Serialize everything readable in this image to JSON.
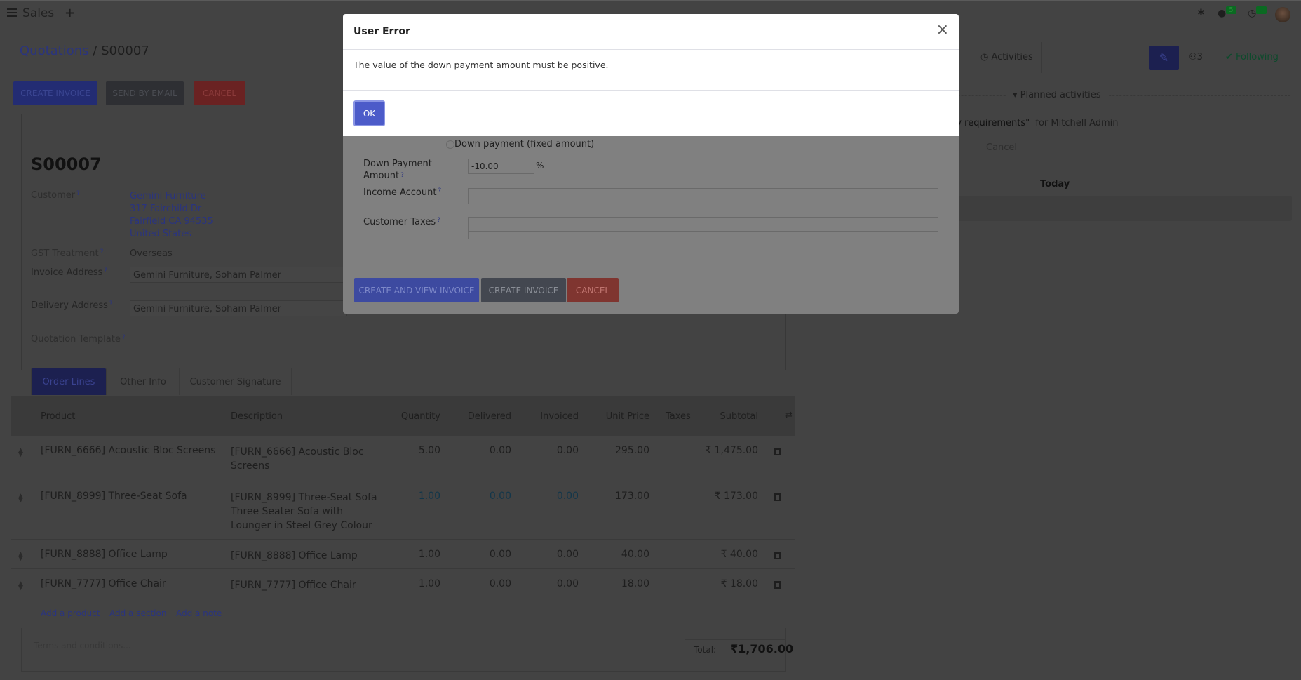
{
  "topbar": {
    "app_name": "Sales",
    "chat_badge": "5",
    "activity_badge": "5"
  },
  "breadcrumb": {
    "parent": "Quotations",
    "separator": "/",
    "current": "S00007"
  },
  "actions": {
    "create_invoice": "Create Invoice",
    "send_by_email": "Send by Email",
    "cancel": "Cancel"
  },
  "form": {
    "title": "S00007",
    "customer_label": "Customer",
    "customer_name": "Gemini Furniture",
    "customer_street": "317 Fairchild Dr",
    "customer_city": "Fairfield CA 94535",
    "customer_country": "United States",
    "gst_label": "GST Treatment",
    "gst_value": "Overseas",
    "invoice_address_label": "Invoice Address",
    "invoice_address_value": "Gemini Furniture, Soham Palmer",
    "delivery_address_label": "Delivery Address",
    "delivery_address_value": "Gemini Furniture, Soham Palmer",
    "template_label": "Quotation Template",
    "help_mark": "?"
  },
  "tabs": [
    "Order Lines",
    "Other Info",
    "Customer Signature"
  ],
  "table": {
    "headers": {
      "product": "Product",
      "description": "Description",
      "quantity": "Quantity",
      "delivered": "Delivered",
      "invoiced": "Invoiced",
      "unit_price": "Unit Price",
      "taxes": "Taxes",
      "subtotal": "Subtotal"
    },
    "rows": [
      {
        "product": "[FURN_6666] Acoustic Bloc Screens",
        "description": "[FURN_6666] Acoustic Bloc Screens",
        "quantity": "5.00",
        "delivered": "0.00",
        "invoiced": "0.00",
        "unit_price": "295.00",
        "subtotal": "₹ 1,475.00"
      },
      {
        "product": "[FURN_8999] Three-Seat Sofa",
        "description": "[FURN_8999] Three-Seat Sofa Three Seater Sofa with Lounger in Steel Grey Colour",
        "quantity": "1.00",
        "delivered": "0.00",
        "invoiced": "0.00",
        "unit_price": "173.00",
        "subtotal": "₹ 173.00"
      },
      {
        "product": "[FURN_8888] Office Lamp",
        "description": "[FURN_8888] Office Lamp",
        "quantity": "1.00",
        "delivered": "0.00",
        "invoiced": "0.00",
        "unit_price": "40.00",
        "subtotal": "₹ 40.00"
      },
      {
        "product": "[FURN_7777] Office Chair",
        "description": "[FURN_7777] Office Chair",
        "quantity": "1.00",
        "delivered": "0.00",
        "invoiced": "0.00",
        "unit_price": "18.00",
        "subtotal": "₹ 18.00"
      }
    ],
    "add_product": "Add a product",
    "add_section": "Add a section",
    "add_note": "Add a note",
    "terms_placeholder": "Terms and conditions...",
    "total_label": "Total:",
    "total_value": "₹1,706.00"
  },
  "chatter": {
    "activities": "Activities",
    "followers_count": "3",
    "following": "Following",
    "planned_activities": "Planned activities",
    "activity_text": "ery requirements\"",
    "activity_for": "for Mitchell Admin",
    "cancel": "Cancel",
    "today": "Today"
  },
  "wizard": {
    "radio_fixed": "Down payment (fixed amount)",
    "amount_label": "Down Payment Amount",
    "amount_value": "-10.00",
    "amount_unit": "%",
    "income_account_label": "Income Account",
    "customer_taxes_label": "Customer Taxes",
    "create_and_view": "Create and View Invoice",
    "create_invoice": "Create Invoice",
    "cancel": "Cancel"
  },
  "error_dialog": {
    "title": "User Error",
    "message": "The value of the down payment amount must be positive.",
    "ok": "OK",
    "close": "×"
  }
}
